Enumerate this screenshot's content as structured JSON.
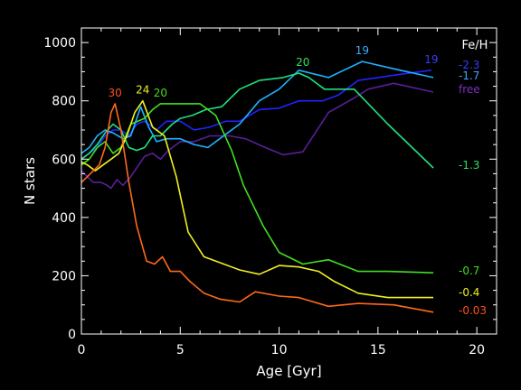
{
  "chart_data": {
    "type": "line",
    "title": "",
    "xlabel": "Age [Gyr]",
    "ylabel": "N stars",
    "xlim": [
      0,
      21
    ],
    "ylim": [
      0,
      1050
    ],
    "xticks": [
      0,
      5,
      10,
      15,
      20
    ],
    "yticks": [
      0,
      200,
      400,
      600,
      800,
      1000
    ],
    "grid": false,
    "legend_title": "Fe/H",
    "colors": {
      "background": "#000000",
      "axes": "#ffffff"
    },
    "series": [
      {
        "name": "free",
        "color": "#5a1e9a",
        "label_color": "#7a30c0",
        "points": [
          [
            0,
            560
          ],
          [
            0.3,
            540
          ],
          [
            0.6,
            520
          ],
          [
            1.0,
            520
          ],
          [
            1.3,
            510
          ],
          [
            1.5,
            500
          ],
          [
            1.8,
            530
          ],
          [
            2.1,
            510
          ],
          [
            2.5,
            540
          ],
          [
            3.2,
            610
          ],
          [
            3.6,
            620
          ],
          [
            4.0,
            600
          ],
          [
            4.4,
            630
          ],
          [
            5.0,
            660
          ],
          [
            5.7,
            660
          ],
          [
            6.5,
            680
          ],
          [
            7.5,
            680
          ],
          [
            8.3,
            670
          ],
          [
            9.3,
            640
          ],
          [
            10.2,
            615
          ],
          [
            11.2,
            625
          ],
          [
            12.5,
            760
          ],
          [
            13.8,
            810
          ],
          [
            14.5,
            840
          ],
          [
            15.8,
            860
          ],
          [
            17.8,
            830
          ]
        ]
      },
      {
        "name": "-2.3",
        "color": "#2323ff",
        "label_color": "#3a3aff",
        "peak_labels": [
          {
            "x": 17.7,
            "y": 905,
            "text": "19"
          }
        ],
        "points": [
          [
            0,
            600
          ],
          [
            0.4,
            620
          ],
          [
            0.8,
            640
          ],
          [
            1.2,
            680
          ],
          [
            1.6,
            700
          ],
          [
            2.0,
            700
          ],
          [
            2.4,
            680
          ],
          [
            2.8,
            720
          ],
          [
            3.2,
            730
          ],
          [
            3.8,
            700
          ],
          [
            4.3,
            730
          ],
          [
            5.0,
            730
          ],
          [
            5.7,
            700
          ],
          [
            6.5,
            710
          ],
          [
            7.3,
            730
          ],
          [
            8.0,
            730
          ],
          [
            9.0,
            770
          ],
          [
            10.0,
            775
          ],
          [
            11.0,
            800
          ],
          [
            12.2,
            800
          ],
          [
            13.0,
            820
          ],
          [
            14.0,
            870
          ],
          [
            15.0,
            880
          ],
          [
            16.0,
            890
          ],
          [
            17.7,
            905
          ]
        ]
      },
      {
        "name": "-1.7",
        "color": "#1cb4ff",
        "label_color": "#3aaaff",
        "peak_labels": [
          {
            "x": 14.2,
            "y": 935,
            "text": "19"
          }
        ],
        "points": [
          [
            0,
            620
          ],
          [
            0.4,
            640
          ],
          [
            0.8,
            680
          ],
          [
            1.2,
            700
          ],
          [
            1.6,
            690
          ],
          [
            2.1,
            670
          ],
          [
            2.5,
            680
          ],
          [
            3.0,
            780
          ],
          [
            3.4,
            710
          ],
          [
            3.8,
            660
          ],
          [
            4.3,
            670
          ],
          [
            5.0,
            670
          ],
          [
            5.7,
            650
          ],
          [
            6.4,
            640
          ],
          [
            7.4,
            690
          ],
          [
            8.0,
            720
          ],
          [
            9.0,
            800
          ],
          [
            10.0,
            840
          ],
          [
            11.0,
            905
          ],
          [
            12.5,
            880
          ],
          [
            14.2,
            935
          ],
          [
            15.8,
            910
          ],
          [
            17.8,
            880
          ]
        ]
      },
      {
        "name": "-1.3",
        "color": "#20e080",
        "label_color": "#30e060",
        "peak_labels": [
          {
            "x": 11.2,
            "y": 895,
            "text": "20"
          }
        ],
        "points": [
          [
            0,
            600
          ],
          [
            0.4,
            620
          ],
          [
            0.8,
            650
          ],
          [
            1.2,
            690
          ],
          [
            1.6,
            720
          ],
          [
            2.0,
            700
          ],
          [
            2.4,
            640
          ],
          [
            2.8,
            630
          ],
          [
            3.2,
            640
          ],
          [
            3.6,
            680
          ],
          [
            4.0,
            680
          ],
          [
            4.6,
            720
          ],
          [
            5.0,
            740
          ],
          [
            5.6,
            750
          ],
          [
            6.3,
            770
          ],
          [
            7.1,
            780
          ],
          [
            8.0,
            840
          ],
          [
            9.0,
            870
          ],
          [
            10.2,
            880
          ],
          [
            11.0,
            895
          ],
          [
            11.5,
            880
          ],
          [
            12.3,
            840
          ],
          [
            13.8,
            840
          ],
          [
            15.5,
            720
          ],
          [
            17.8,
            570
          ]
        ]
      },
      {
        "name": "-0.7",
        "color": "#40e020",
        "label_color": "#40e020",
        "peak_labels": [
          {
            "x": 4.0,
            "y": 790,
            "text": "20"
          }
        ],
        "points": [
          [
            0,
            580
          ],
          [
            0.4,
            600
          ],
          [
            0.8,
            640
          ],
          [
            1.2,
            660
          ],
          [
            1.6,
            620
          ],
          [
            2.0,
            640
          ],
          [
            2.5,
            720
          ],
          [
            3.2,
            740
          ],
          [
            3.6,
            770
          ],
          [
            4.0,
            790
          ],
          [
            5.0,
            790
          ],
          [
            6.0,
            790
          ],
          [
            6.8,
            750
          ],
          [
            7.6,
            630
          ],
          [
            8.2,
            510
          ],
          [
            9.2,
            370
          ],
          [
            10.0,
            280
          ],
          [
            11.2,
            240
          ],
          [
            12.5,
            255
          ],
          [
            14.0,
            215
          ],
          [
            15.5,
            215
          ],
          [
            17.8,
            210
          ]
        ]
      },
      {
        "name": "-0.4",
        "color": "#f0f020",
        "label_color": "#f0f020",
        "peak_labels": [
          {
            "x": 3.1,
            "y": 800,
            "text": "24"
          }
        ],
        "points": [
          [
            0,
            590
          ],
          [
            0.3,
            580
          ],
          [
            0.7,
            560
          ],
          [
            1.1,
            580
          ],
          [
            1.5,
            600
          ],
          [
            1.9,
            620
          ],
          [
            2.3,
            680
          ],
          [
            2.7,
            760
          ],
          [
            3.1,
            800
          ],
          [
            3.6,
            710
          ],
          [
            4.2,
            680
          ],
          [
            4.8,
            540
          ],
          [
            5.4,
            350
          ],
          [
            6.2,
            265
          ],
          [
            7.2,
            240
          ],
          [
            8.0,
            220
          ],
          [
            9.0,
            205
          ],
          [
            10.0,
            235
          ],
          [
            11.0,
            230
          ],
          [
            12.0,
            215
          ],
          [
            12.8,
            180
          ],
          [
            14.0,
            140
          ],
          [
            15.5,
            125
          ],
          [
            17.8,
            125
          ]
        ]
      },
      {
        "name": "-0.03",
        "color": "#ff6a1a",
        "label_color": "#ff5020",
        "peak_labels": [
          {
            "x": 1.7,
            "y": 790,
            "text": "30"
          }
        ],
        "points": [
          [
            0,
            520
          ],
          [
            0.3,
            540
          ],
          [
            0.6,
            560
          ],
          [
            0.9,
            580
          ],
          [
            1.2,
            640
          ],
          [
            1.5,
            760
          ],
          [
            1.7,
            790
          ],
          [
            2.0,
            700
          ],
          [
            2.4,
            520
          ],
          [
            2.8,
            370
          ],
          [
            3.3,
            250
          ],
          [
            3.7,
            240
          ],
          [
            4.1,
            265
          ],
          [
            4.5,
            215
          ],
          [
            5.0,
            215
          ],
          [
            5.5,
            180
          ],
          [
            6.2,
            140
          ],
          [
            7.0,
            120
          ],
          [
            8.0,
            110
          ],
          [
            8.8,
            145
          ],
          [
            10.0,
            130
          ],
          [
            11.0,
            125
          ],
          [
            12.5,
            95
          ],
          [
            14.0,
            105
          ],
          [
            15.8,
            100
          ],
          [
            17.8,
            75
          ]
        ]
      }
    ]
  }
}
